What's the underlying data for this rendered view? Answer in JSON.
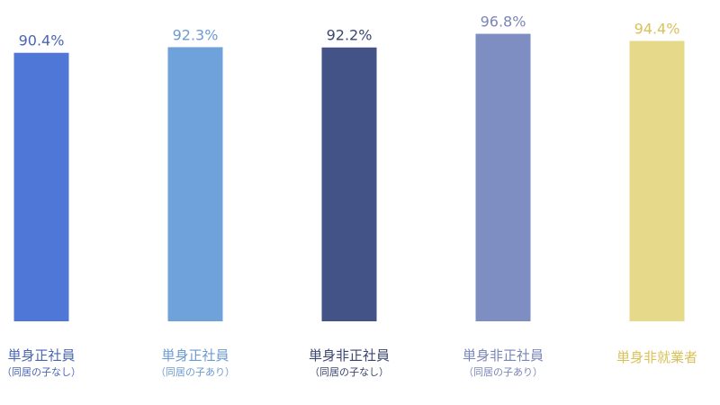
{
  "chart_data": {
    "type": "bar",
    "categories": [
      {
        "label": "単身正社員",
        "sublabel": "（同居の子なし）",
        "color": "#4f77d8"
      },
      {
        "label": "単身正社員",
        "sublabel": "（同居の子あり）",
        "color": "#6fa2db"
      },
      {
        "label": "単身非正社員",
        "sublabel": "（同居の子なし）",
        "color": "#435287"
      },
      {
        "label": "単身非正社員",
        "sublabel": "（同居の子あり）",
        "color": "#7f8ec2"
      },
      {
        "label": "単身非就業者",
        "sublabel": "",
        "color": "#e6d98a"
      }
    ],
    "values": [
      90.4,
      92.3,
      92.2,
      96.8,
      94.4
    ],
    "value_labels": [
      "90.4%",
      "92.3%",
      "92.2%",
      "96.8%",
      "94.4%"
    ],
    "label_colors": [
      "#4a66b3",
      "#6d9bd0",
      "#3b466f",
      "#7a86b8",
      "#d9c15a"
    ],
    "title": "",
    "xlabel": "",
    "ylabel": "",
    "ylim": [
      0,
      100
    ],
    "grid": false,
    "legend": "none"
  }
}
